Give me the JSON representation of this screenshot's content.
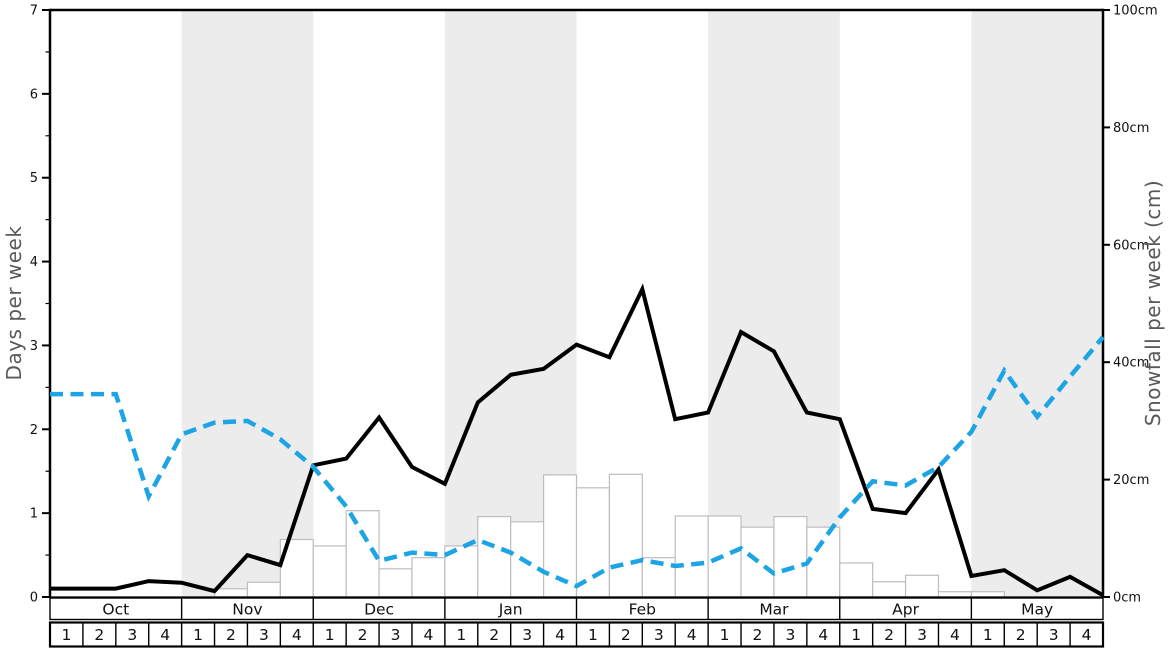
{
  "chart_data": {
    "type": "line+bar",
    "title": "",
    "x_axis": {
      "months": [
        "Oct",
        "Nov",
        "Dec",
        "Jan",
        "Feb",
        "Mar",
        "Apr",
        "May"
      ],
      "week_labels": [
        "1",
        "2",
        "3",
        "4"
      ],
      "shaded_months": [
        "Nov",
        "Jan",
        "Mar",
        "May"
      ]
    },
    "y_left": {
      "label": "Days per week",
      "min": 0,
      "max": 7,
      "major_ticks": [
        "0",
        "1",
        "2",
        "3",
        "4",
        "5",
        "6",
        "7"
      ],
      "minor_tick_step": 0.5
    },
    "y_right": {
      "label": "Snowfall per week (cm)",
      "min": 0,
      "max": 100,
      "ticks": [
        "0cm",
        "20cm",
        "40cm",
        "60cm",
        "80cm",
        "100cm"
      ]
    },
    "series": [
      {
        "name": "days-per-week-solid-line",
        "type": "line",
        "line_style": "solid",
        "color": "#000000",
        "axis": "left",
        "x_positions": "week-boundaries",
        "values": [
          0.1,
          0.1,
          0.1,
          0.19,
          0.17,
          0.07,
          0.5,
          0.38,
          1.57,
          1.65,
          2.14,
          1.55,
          1.35,
          2.32,
          2.65,
          2.72,
          3.01,
          2.86,
          3.67,
          2.12,
          2.2,
          3.16,
          2.93,
          2.2,
          2.12,
          1.05,
          1.0,
          1.52,
          0.25,
          0.32,
          0.08,
          0.24,
          0.02
        ]
      },
      {
        "name": "days-per-week-dashed-line",
        "type": "line",
        "line_style": "dashed",
        "color": "#1CA4E4",
        "axis": "left",
        "x_positions": "week-boundaries",
        "values": [
          2.42,
          2.42,
          2.42,
          1.2,
          1.94,
          2.08,
          2.1,
          1.88,
          1.55,
          1.08,
          0.43,
          0.53,
          0.5,
          0.68,
          0.53,
          0.3,
          0.13,
          0.35,
          0.44,
          0.37,
          0.41,
          0.58,
          0.28,
          0.4,
          0.95,
          1.38,
          1.33,
          1.55,
          1.97,
          2.7,
          2.15,
          2.63,
          3.1
        ]
      },
      {
        "name": "snowfall-per-week-bars",
        "type": "bar",
        "unit": "cm",
        "fill": "#FFFFFF",
        "border": "#BDBDBD",
        "axis": "right",
        "values": [
          0,
          0,
          0,
          0,
          0,
          1.4,
          2.5,
          9.8,
          8.7,
          14.7,
          4.8,
          6.7,
          8.7,
          13.7,
          12.8,
          20.8,
          18.6,
          20.9,
          6.7,
          13.8,
          13.8,
          11.9,
          13.7,
          11.9,
          5.8,
          2.6,
          3.7,
          0.9,
          0.9,
          0,
          0,
          0
        ]
      }
    ]
  },
  "colors": {
    "background": "#FFFFFF",
    "shaded_band": "#ECECEC",
    "axis_line": "#000000",
    "tick_label": "#111111",
    "axis_title": "#595959",
    "table_border": "#000000"
  }
}
